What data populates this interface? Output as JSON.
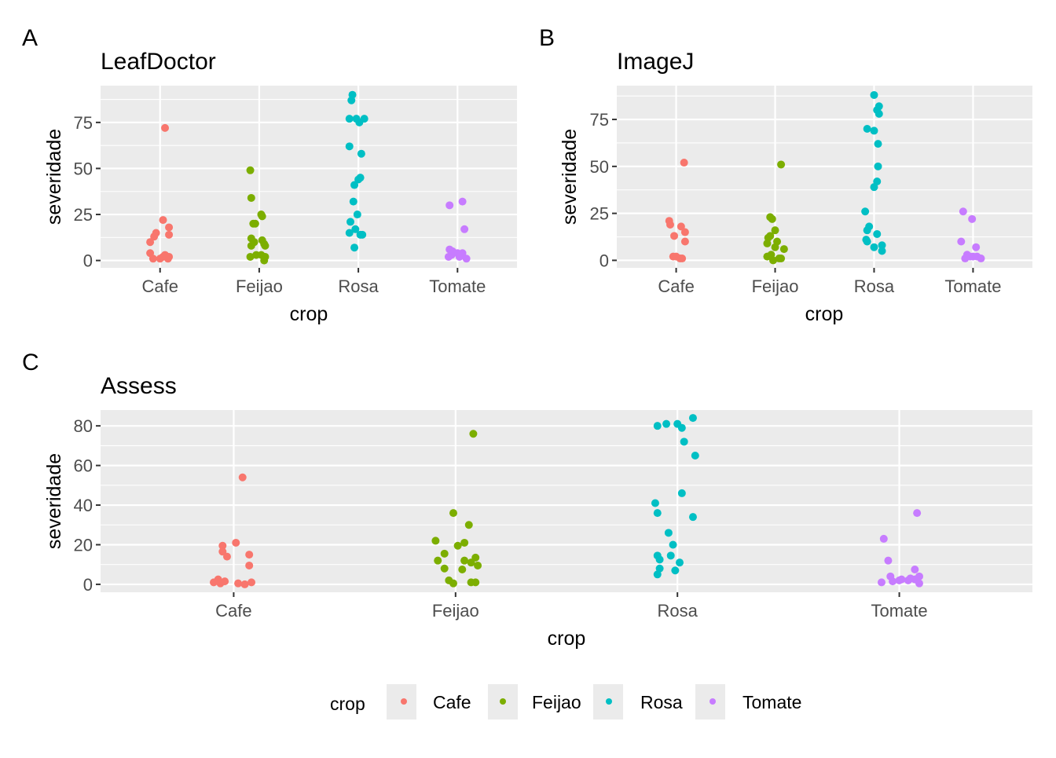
{
  "legend": {
    "title": "crop",
    "entries": [
      "Cafe",
      "Feijao",
      "Rosa",
      "Tomate"
    ],
    "position": "bottom"
  },
  "colors": {
    "Cafe": "#F8766D",
    "Feijao": "#7CAE00",
    "Rosa": "#00BFC4",
    "Tomate": "#C77CFF",
    "panel_bg": "#EBEBEB",
    "grid": "#FFFFFF",
    "tick_text": "#4D4D4D"
  },
  "chart_data": [
    {
      "type": "scatter",
      "tag": "A",
      "title": "LeafDoctor",
      "xlabel": "crop",
      "ylabel": "severidade",
      "categories": [
        "Cafe",
        "Feijao",
        "Rosa",
        "Tomate"
      ],
      "yticks": [
        0,
        25,
        50,
        75
      ],
      "ytick_labels": [
        "0",
        "25",
        "50",
        "75"
      ],
      "ylim": [
        -4,
        95
      ],
      "grid": true,
      "series": [
        {
          "name": "Cafe",
          "points": [
            [
              0.05,
              72
            ],
            [
              0.03,
              22
            ],
            [
              0.09,
              18
            ],
            [
              -0.04,
              15
            ],
            [
              0.09,
              14
            ],
            [
              -0.06,
              13
            ],
            [
              -0.1,
              10
            ],
            [
              -0.1,
              4
            ],
            [
              0.05,
              3
            ],
            [
              -0.07,
              1
            ],
            [
              0.0,
              1
            ],
            [
              0.09,
              2
            ],
            [
              0.03,
              2
            ],
            [
              0.08,
              1
            ]
          ]
        },
        {
          "name": "Feijao",
          "points": [
            [
              -0.09,
              49
            ],
            [
              -0.08,
              34
            ],
            [
              0.02,
              25
            ],
            [
              0.03,
              24
            ],
            [
              -0.06,
              20
            ],
            [
              -0.04,
              20
            ],
            [
              -0.08,
              12
            ],
            [
              0.03,
              11
            ],
            [
              -0.05,
              10
            ],
            [
              0.05,
              9
            ],
            [
              0.06,
              8
            ],
            [
              -0.08,
              8
            ],
            [
              -0.03,
              3
            ],
            [
              0.02,
              3
            ],
            [
              -0.09,
              2
            ],
            [
              0.06,
              2
            ],
            [
              0.05,
              0
            ]
          ]
        },
        {
          "name": "Rosa",
          "points": [
            [
              -0.06,
              90
            ],
            [
              -0.07,
              87
            ],
            [
              -0.09,
              77
            ],
            [
              -0.02,
              77
            ],
            [
              0.06,
              77
            ],
            [
              0.01,
              75
            ],
            [
              -0.09,
              62
            ],
            [
              0.03,
              58
            ],
            [
              0.02,
              45
            ],
            [
              0.0,
              44
            ],
            [
              -0.04,
              41
            ],
            [
              -0.05,
              32
            ],
            [
              -0.01,
              25
            ],
            [
              -0.08,
              21
            ],
            [
              -0.09,
              15
            ],
            [
              -0.03,
              17
            ],
            [
              0.02,
              14
            ],
            [
              0.04,
              14
            ],
            [
              -0.04,
              7
            ]
          ]
        },
        {
          "name": "Tomate",
          "points": [
            [
              0.05,
              32
            ],
            [
              -0.08,
              30
            ],
            [
              0.07,
              17
            ],
            [
              -0.08,
              6
            ],
            [
              -0.05,
              5
            ],
            [
              0.0,
              4
            ],
            [
              0.05,
              4
            ],
            [
              -0.06,
              3
            ],
            [
              0.02,
              2
            ],
            [
              -0.09,
              2
            ],
            [
              0.09,
              1
            ]
          ]
        }
      ]
    },
    {
      "type": "scatter",
      "tag": "B",
      "title": "ImageJ",
      "xlabel": "crop",
      "ylabel": "severidade",
      "categories": [
        "Cafe",
        "Feijao",
        "Rosa",
        "Tomate"
      ],
      "yticks": [
        0,
        25,
        50,
        75
      ],
      "ytick_labels": [
        "0",
        "25",
        "50",
        "75"
      ],
      "ylim": [
        -4,
        93
      ],
      "grid": true,
      "series": [
        {
          "name": "Cafe",
          "points": [
            [
              0.08,
              52
            ],
            [
              -0.07,
              21
            ],
            [
              -0.06,
              19
            ],
            [
              0.05,
              18
            ],
            [
              0.09,
              15
            ],
            [
              -0.02,
              13
            ],
            [
              0.09,
              10
            ],
            [
              -0.03,
              2
            ],
            [
              0.04,
              1
            ],
            [
              0.06,
              1
            ],
            [
              0.0,
              2
            ]
          ]
        },
        {
          "name": "Feijao",
          "points": [
            [
              0.06,
              51
            ],
            [
              -0.05,
              23
            ],
            [
              -0.03,
              22
            ],
            [
              0.0,
              16
            ],
            [
              -0.05,
              13
            ],
            [
              -0.07,
              12
            ],
            [
              0.02,
              10
            ],
            [
              -0.08,
              9
            ],
            [
              0.09,
              6
            ],
            [
              0.0,
              7
            ],
            [
              -0.04,
              3
            ],
            [
              -0.08,
              2
            ],
            [
              0.06,
              1
            ],
            [
              -0.02,
              0
            ],
            [
              0.04,
              1
            ]
          ]
        },
        {
          "name": "Rosa",
          "points": [
            [
              0.0,
              88
            ],
            [
              0.05,
              82
            ],
            [
              0.03,
              80
            ],
            [
              0.05,
              78
            ],
            [
              -0.07,
              70
            ],
            [
              0.0,
              69
            ],
            [
              0.04,
              62
            ],
            [
              0.04,
              50
            ],
            [
              0.03,
              42
            ],
            [
              0.0,
              39
            ],
            [
              -0.09,
              26
            ],
            [
              -0.05,
              18
            ],
            [
              -0.07,
              16
            ],
            [
              0.03,
              14
            ],
            [
              -0.08,
              11
            ],
            [
              -0.07,
              10
            ],
            [
              0.0,
              7
            ],
            [
              0.08,
              8
            ],
            [
              0.08,
              5
            ]
          ]
        },
        {
          "name": "Tomate",
          "points": [
            [
              -0.1,
              26
            ],
            [
              -0.01,
              22
            ],
            [
              -0.12,
              10
            ],
            [
              0.03,
              7
            ],
            [
              -0.06,
              3
            ],
            [
              -0.03,
              2
            ],
            [
              0.04,
              2
            ],
            [
              0.08,
              1
            ],
            [
              0.0,
              2
            ],
            [
              -0.08,
              1
            ]
          ]
        }
      ]
    },
    {
      "type": "scatter",
      "tag": "C",
      "title": "Assess",
      "xlabel": "crop",
      "ylabel": "severidade",
      "categories": [
        "Cafe",
        "Feijao",
        "Rosa",
        "Tomate"
      ],
      "yticks": [
        0,
        20,
        40,
        60,
        80
      ],
      "ytick_labels": [
        "0",
        "20",
        "40",
        "60",
        "80"
      ],
      "ylim": [
        -4,
        88
      ],
      "grid": true,
      "series": [
        {
          "name": "Cafe",
          "points": [
            [
              0.04,
              54
            ],
            [
              0.01,
              21
            ],
            [
              -0.05,
              19.5
            ],
            [
              -0.05,
              16.5
            ],
            [
              -0.03,
              14
            ],
            [
              0.07,
              15
            ],
            [
              0.07,
              9.5
            ],
            [
              -0.07,
              2.5
            ],
            [
              -0.09,
              1
            ],
            [
              -0.06,
              0.5
            ],
            [
              -0.04,
              1.5
            ],
            [
              0.02,
              0.5
            ],
            [
              0.05,
              0
            ],
            [
              0.08,
              1
            ]
          ]
        },
        {
          "name": "Feijao",
          "points": [
            [
              0.08,
              76
            ],
            [
              -0.01,
              36
            ],
            [
              0.06,
              30
            ],
            [
              -0.09,
              22
            ],
            [
              0.04,
              21
            ],
            [
              -0.05,
              15.5
            ],
            [
              0.01,
              19.5
            ],
            [
              -0.08,
              12
            ],
            [
              0.04,
              12
            ],
            [
              0.07,
              11
            ],
            [
              0.09,
              13.5
            ],
            [
              0.1,
              9.5
            ],
            [
              -0.05,
              8
            ],
            [
              0.03,
              7.5
            ],
            [
              -0.03,
              2
            ],
            [
              -0.01,
              0.5
            ],
            [
              0.07,
              1
            ],
            [
              0.09,
              1
            ]
          ]
        },
        {
          "name": "Rosa",
          "points": [
            [
              0.07,
              84
            ],
            [
              -0.09,
              80
            ],
            [
              -0.05,
              81
            ],
            [
              0.0,
              81
            ],
            [
              0.02,
              79
            ],
            [
              0.03,
              72
            ],
            [
              0.08,
              65
            ],
            [
              0.02,
              46
            ],
            [
              -0.1,
              41
            ],
            [
              -0.09,
              36
            ],
            [
              0.07,
              34
            ],
            [
              -0.04,
              26
            ],
            [
              -0.02,
              20
            ],
            [
              -0.09,
              14.5
            ],
            [
              -0.03,
              14.5
            ],
            [
              -0.08,
              12.5
            ],
            [
              0.01,
              11
            ],
            [
              -0.08,
              8
            ],
            [
              -0.09,
              5
            ],
            [
              -0.01,
              7
            ]
          ]
        },
        {
          "name": "Tomate",
          "points": [
            [
              0.08,
              36
            ],
            [
              -0.07,
              23
            ],
            [
              -0.05,
              12
            ],
            [
              0.07,
              7.5
            ],
            [
              -0.04,
              4
            ],
            [
              -0.08,
              1
            ],
            [
              0.0,
              2
            ],
            [
              -0.03,
              1.5
            ],
            [
              0.05,
              3
            ],
            [
              0.09,
              4
            ],
            [
              0.07,
              2.5
            ],
            [
              0.09,
              0.5
            ],
            [
              0.04,
              2
            ],
            [
              0.01,
              2.5
            ]
          ]
        }
      ]
    }
  ]
}
